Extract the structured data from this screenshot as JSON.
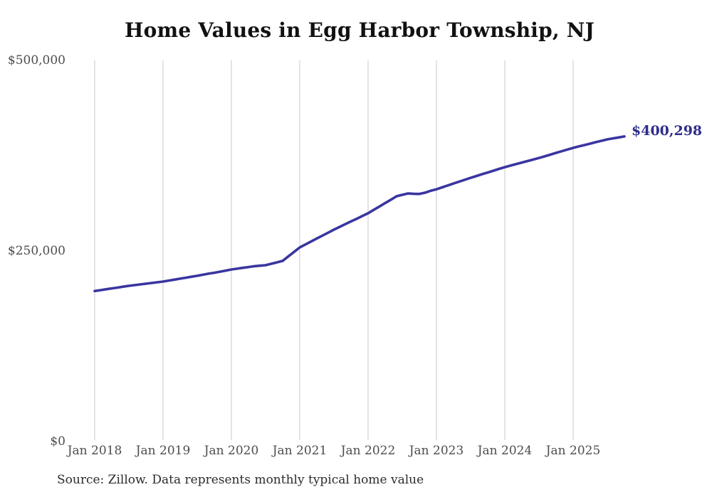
{
  "title": "Home Values in Egg Harbor Township, NJ",
  "source_note": "Source: Zillow. Data represents monthly typical home value",
  "end_label": "$400,298",
  "colors": {
    "line": "#3a35a0",
    "end_label": "#2d2d8e",
    "gridline": "#c9c9c9",
    "axis_text": "#4d4d4d",
    "title_text": "#111111",
    "background": "#ffffff"
  },
  "chart_data": {
    "type": "line",
    "title": "Home Values in Egg Harbor Township, NJ",
    "xlabel": "",
    "ylabel": "",
    "ylim": [
      0,
      500000
    ],
    "grid": "vertical-only",
    "legend": "none",
    "frequency": "monthly",
    "x_start_month": "Jan 2018",
    "x_end_month": "Oct 2025",
    "x_tick_labels": [
      "Jan 2018",
      "Jan 2019",
      "Jan 2020",
      "Jan 2021",
      "Jan 2022",
      "Jan 2023",
      "Jan 2024",
      "Jan 2025"
    ],
    "y_ticks": [
      {
        "value": 0,
        "label": "$0"
      },
      {
        "value": 250000,
        "label": "$250,000"
      },
      {
        "value": 500000,
        "label": "$500,000"
      }
    ],
    "series": [
      {
        "name": "Typical home value",
        "final_value": 400298,
        "final_value_label": "$400,298",
        "values": [
          197500,
          198600,
          199800,
          200900,
          202000,
          203200,
          204300,
          205200,
          206200,
          207100,
          208000,
          209000,
          209900,
          211200,
          212400,
          213700,
          214900,
          216200,
          217400,
          218800,
          220200,
          221500,
          222900,
          224300,
          225700,
          226800,
          227900,
          228900,
          230000,
          230700,
          231300,
          233200,
          235100,
          237000,
          242900,
          248800,
          254700,
          258600,
          262500,
          266400,
          270200,
          274100,
          278000,
          281600,
          285200,
          288800,
          292300,
          295900,
          299500,
          304000,
          308400,
          312900,
          317300,
          321800,
          323700,
          325500,
          325000,
          324800,
          326500,
          329000,
          331000,
          333500,
          336000,
          338500,
          341000,
          343500,
          346000,
          348300,
          350700,
          353000,
          355300,
          357700,
          360000,
          362000,
          364000,
          366000,
          368000,
          370000,
          372000,
          374200,
          376400,
          378700,
          380900,
          383100,
          385300,
          387200,
          389000,
          390900,
          392800,
          394600,
          396500,
          397800,
          399000,
          400298
        ]
      }
    ]
  }
}
